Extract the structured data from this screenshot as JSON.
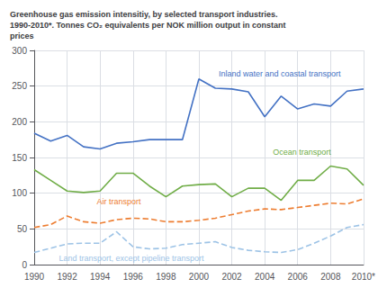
{
  "chart_data": {
    "type": "line",
    "title": "Greenhouse gas emission intensitiy, by selected transport industries.\n1990-2010*. Tonnes CO₂ equivalents per NOK million output in constant\nprices",
    "x": [
      1990,
      1991,
      1992,
      1993,
      1994,
      1995,
      1996,
      1997,
      1998,
      1999,
      2000,
      2001,
      2002,
      2003,
      2004,
      2005,
      2006,
      2007,
      2008,
      2009,
      2010
    ],
    "series": [
      {
        "name": "Inland water and coastal transport",
        "color": "#4472c4",
        "line_style": "solid",
        "values": [
          184,
          173,
          181,
          165,
          162,
          170,
          172,
          175,
          175,
          175,
          260,
          247,
          246,
          242,
          207,
          236,
          218,
          225,
          222,
          243,
          246
        ]
      },
      {
        "name": "Ocean transport",
        "color": "#70ad47",
        "line_style": "solid",
        "values": [
          133,
          118,
          103,
          101,
          103,
          128,
          128,
          110,
          95,
          110,
          112,
          113,
          95,
          107,
          107,
          90,
          118,
          118,
          138,
          134,
          111
        ]
      },
      {
        "name": "Air transport",
        "color": "#ed7d31",
        "line_style": "dashed",
        "values": [
          52,
          56,
          68,
          60,
          58,
          63,
          65,
          64,
          60,
          60,
          62,
          65,
          70,
          75,
          78,
          77,
          80,
          83,
          86,
          85,
          92
        ]
      },
      {
        "name": "Land transport, except pipeline transport",
        "color": "#9dc3e6",
        "line_style": "dashed",
        "values": [
          17,
          23,
          29,
          30,
          30,
          46,
          25,
          22,
          23,
          28,
          30,
          32,
          24,
          20,
          18,
          17,
          21,
          30,
          40,
          52,
          56
        ]
      }
    ],
    "annotations": [
      {
        "text": "Inland water and coastal transport",
        "x": 2001.2,
        "y": 262,
        "color": "#4472c4"
      },
      {
        "text": "Ocean transport",
        "x": 2004.5,
        "y": 152,
        "color": "#70ad47"
      },
      {
        "text": "Air transport",
        "x": 1993.8,
        "y": 82,
        "color": "#ed7d31"
      },
      {
        "text": "Land transport, except pipeline transport",
        "x": 1991.5,
        "y": 3,
        "color": "#9dc3e6"
      }
    ],
    "xlim": [
      1990,
      2010
    ],
    "xticks": [
      1990,
      1992,
      1994,
      1996,
      1998,
      2000,
      2002,
      2004,
      2006,
      2008,
      {
        "value": 2010,
        "label": "2010*"
      }
    ],
    "ylim": [
      0,
      300
    ],
    "yticks": [
      0,
      50,
      100,
      150,
      200,
      250,
      300
    ],
    "grid": true
  }
}
